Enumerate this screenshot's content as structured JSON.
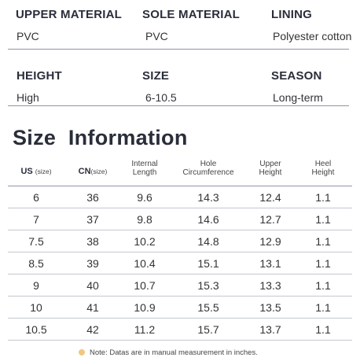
{
  "specs": [
    [
      {
        "label": "UPPER MATERIAL",
        "value": "PVC"
      },
      {
        "label": "SOLE MATERIAL",
        "value": "PVC"
      },
      {
        "label": "LINING",
        "value": "Polyester cotton"
      }
    ],
    [
      {
        "label": "HEIGHT",
        "value": "High"
      },
      {
        "label": "SIZE",
        "value": "6-10.5"
      },
      {
        "label": "SEASON",
        "value": "Long-term"
      }
    ]
  ],
  "section_title": "Size  Information",
  "table": {
    "headers": [
      {
        "main": "US",
        "unit": "(size)"
      },
      {
        "main": "CN",
        "unit": "(size)"
      },
      {
        "line1": "Internal",
        "line2": "Length"
      },
      {
        "line1": "Hole",
        "line2": "Circumference"
      },
      {
        "line1": "Upper",
        "line2": "Height"
      },
      {
        "line1": "Heel",
        "line2": "Height"
      }
    ],
    "rows": [
      [
        "6",
        "36",
        "9.6",
        "14.3",
        "12.4",
        "1.1"
      ],
      [
        "7",
        "37",
        "9.8",
        "14.6",
        "12.7",
        "1.1"
      ],
      [
        "7.5",
        "38",
        "10.2",
        "14.8",
        "12.9",
        "1.1"
      ],
      [
        "8.5",
        "39",
        "10.4",
        "15.1",
        "13.1",
        "1.1"
      ],
      [
        "9",
        "40",
        "10.7",
        "15.3",
        "13.3",
        "1.1"
      ],
      [
        "10",
        "41",
        "10.9",
        "15.5",
        "13.5",
        "1.1"
      ],
      [
        "10.5",
        "42",
        "11.2",
        "15.7",
        "13.7",
        "1.1"
      ]
    ]
  },
  "note": "Note: Datas are in manual measurement in inches."
}
